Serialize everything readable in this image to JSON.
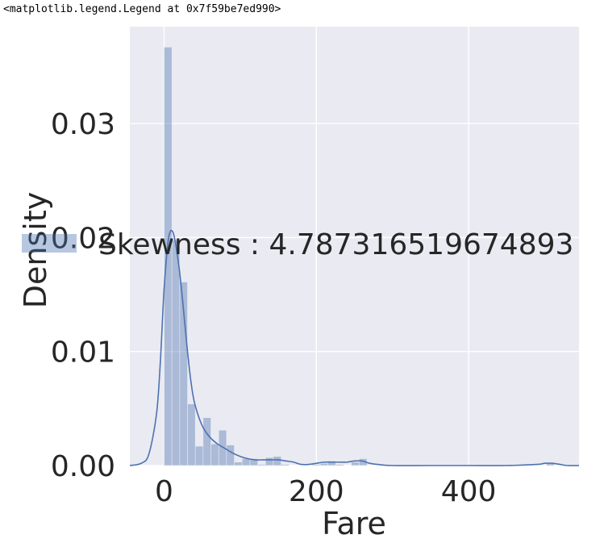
{
  "output_repr": "<matplotlib.legend.Legend at 0x7f59be7ed990>",
  "chart_data": {
    "type": "bar",
    "title": "",
    "xlabel": "Fare",
    "ylabel": "Density",
    "xlim": [
      -45,
      545
    ],
    "ylim": [
      0,
      0.0385
    ],
    "x_ticks": [
      0,
      200,
      400
    ],
    "x_tick_labels": [
      "0",
      "200",
      "400"
    ],
    "y_ticks": [
      0,
      0.01,
      0.02,
      0.03
    ],
    "y_tick_labels": [
      "0.00",
      "0.01",
      "0.02",
      "0.03"
    ],
    "grid": true,
    "legend": {
      "label": "Skewness : 4.787316519674893",
      "placement": "center-left"
    },
    "histogram": {
      "bin_width": 10.25,
      "bin_starts": [
        0,
        10.25,
        20.5,
        30.75,
        41,
        51.25,
        61.5,
        71.75,
        82,
        92.25,
        102.5,
        112.75,
        123,
        133.25,
        143.5,
        153.75,
        164,
        174.25,
        184.5,
        194.75,
        205,
        215.25,
        225.5,
        235.75,
        246,
        256.25,
        266.5,
        276.75,
        287,
        297.25,
        307.5,
        317.75,
        328,
        338.25,
        348.5,
        358.75,
        369,
        379.25,
        389.5,
        399.75,
        410,
        420.25,
        430.5,
        440.75,
        451,
        461.25,
        471.5,
        481.75,
        492,
        502.25
      ],
      "density": [
        0.0367,
        0.0198,
        0.0161,
        0.0054,
        0.0017,
        0.0042,
        0.0019,
        0.0031,
        0.0018,
        0.0003,
        0.0006,
        0.0006,
        0.0001,
        0.0007,
        0.0008,
        0.0001,
        0.0,
        0.0,
        0.0,
        0.0001,
        0.0002,
        0.0004,
        0.0001,
        0.0,
        0.0003,
        0.0006,
        0.0,
        0.0,
        0.0,
        0.0,
        0.0,
        0.0,
        0.0,
        0.0,
        0.0,
        0.0,
        0.0,
        0.0,
        0.0,
        0.0,
        0.0,
        0.0,
        0.0,
        0.0,
        0.0,
        0.0,
        0.0,
        0.0,
        0.0,
        0.0002
      ],
      "color": "#4c72b0",
      "alpha": 0.4
    },
    "kde": {
      "x": [
        -45,
        -30,
        -20,
        -10,
        -5,
        0,
        5,
        8,
        10,
        12,
        15,
        20,
        25,
        30,
        35,
        40,
        50,
        60,
        70,
        80,
        90,
        100,
        110,
        120,
        130,
        140,
        150,
        160,
        170,
        180,
        190,
        200,
        210,
        220,
        230,
        240,
        250,
        260,
        270,
        280,
        300,
        350,
        400,
        450,
        490,
        500,
        510,
        520,
        530,
        545
      ],
      "y": [
        0.0,
        0.0002,
        0.001,
        0.0045,
        0.009,
        0.0155,
        0.0195,
        0.0205,
        0.0206,
        0.0204,
        0.0195,
        0.0172,
        0.014,
        0.0105,
        0.0075,
        0.0055,
        0.0035,
        0.0025,
        0.0019,
        0.0015,
        0.0011,
        0.0008,
        0.0006,
        0.0005,
        0.0005,
        0.0005,
        0.0005,
        0.0004,
        0.0003,
        0.0001,
        0.0001,
        0.0002,
        0.0003,
        0.0003,
        0.0003,
        0.0003,
        0.0004,
        0.0004,
        0.0002,
        0.0001,
        0.0,
        0.0,
        0.0,
        0.0,
        0.0001,
        0.0002,
        0.0002,
        0.0001,
        0.0,
        0.0
      ],
      "color": "#4c72b0"
    },
    "colors": {
      "background": "#eaeaf2",
      "grid": "#ffffff",
      "text": "#262626"
    }
  }
}
